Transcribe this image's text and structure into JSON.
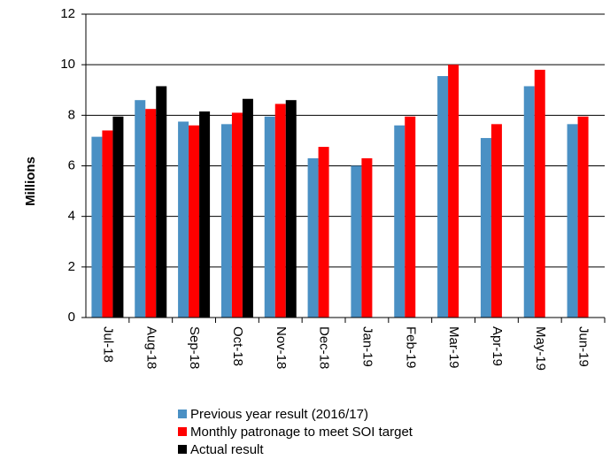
{
  "chart_data": {
    "type": "bar",
    "y_label": "Millions",
    "categories": [
      "Jul-18",
      "Aug-18",
      "Sep-18",
      "Oct-18",
      "Nov-18",
      "Dec-18",
      "Jan-19",
      "Feb-19",
      "Mar-19",
      "Apr-19",
      "May-19",
      "Jun-19"
    ],
    "series": [
      {
        "name": "Previous year result (2016/17)",
        "color": "#4a90c4",
        "values": [
          7.15,
          8.6,
          7.75,
          7.65,
          7.95,
          6.3,
          6.0,
          7.6,
          9.55,
          7.1,
          9.15,
          7.65
        ]
      },
      {
        "name": "Monthly patronage to meet SOI target",
        "color": "#ff0000",
        "values": [
          7.4,
          8.25,
          7.6,
          8.1,
          8.45,
          6.75,
          6.3,
          7.95,
          10.0,
          7.65,
          9.8,
          7.95
        ]
      },
      {
        "name": "Actual result",
        "color": "#000000",
        "values": [
          7.95,
          9.15,
          8.15,
          8.65,
          8.6,
          null,
          null,
          null,
          null,
          null,
          null,
          null
        ]
      }
    ],
    "ylim": [
      0,
      12
    ],
    "yticks": [
      0,
      2,
      4,
      6,
      8,
      10,
      12
    ],
    "grid": true,
    "legend": "bottom"
  }
}
